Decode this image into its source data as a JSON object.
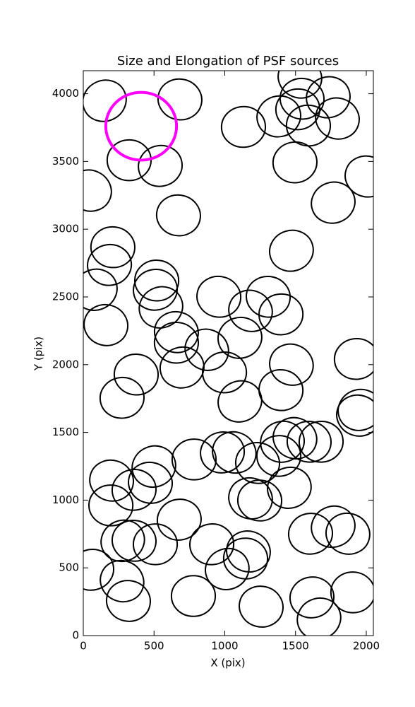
{
  "chart_data": {
    "type": "ellipse",
    "title": "Size and Elongation of PSF sources",
    "x_label": "X (pix)",
    "y_label": "Y (pix)",
    "xlim": [
      0,
      2050
    ],
    "ylim": [
      0,
      4170
    ],
    "xticks": [
      0,
      500,
      1000,
      1500,
      2000
    ],
    "yticks": [
      0,
      500,
      1000,
      1500,
      2000,
      2500,
      3000,
      3500,
      4000
    ],
    "series": [
      {
        "color": "#000000",
        "ellipse_width": 310,
        "ellipse_height": 300,
        "x": [
          150,
          683,
          324,
          544,
          45,
          673,
          1132,
          1382,
          1531,
          1546,
          1516,
          1731,
          1796,
          1591,
          1496,
          1766,
          2005,
          209,
          185,
          85,
          160,
          519,
          509,
          549,
          658,
          658,
          698,
          873,
          958,
          998,
          1107,
          1182,
          1307,
          1397,
          1471,
          1471,
          1397,
          1930,
          1955,
          1945,
          374,
          274,
          1107,
          200,
          195,
          359,
          499,
          474,
          783,
          678,
          279,
          359,
          509,
          983,
          1067,
          1232,
          1382,
          1407,
          1496,
          1596,
          1681,
          1456,
          1182,
          1247,
          908,
          1017,
          1167,
          1147,
          1606,
          1766,
          1870,
          1905,
          1616,
          1666,
          1257,
          778,
          60,
          274,
          319
        ],
        "y": [
          3948,
          3958,
          3509,
          3467,
          3285,
          3102,
          3755,
          3833,
          4120,
          3963,
          3885,
          3974,
          3817,
          3765,
          3493,
          3196,
          3389,
          2867,
          2736,
          2553,
          2292,
          2621,
          2553,
          2423,
          2240,
          2162,
          1979,
          2110,
          2501,
          1943,
          2198,
          2397,
          2501,
          2371,
          2841,
          2000,
          1812,
          2042,
          1666,
          1624,
          1927,
          1755,
          1729,
          1144,
          961,
          1076,
          1248,
          1128,
          1300,
          856,
          700,
          700,
          674,
          1352,
          1352,
          1274,
          1326,
          1431,
          1457,
          1431,
          1431,
          1091,
          1013,
          997,
          674,
          491,
          621,
          569,
          752,
          804,
          752,
          319,
          282,
          125,
          214,
          292,
          486,
          402,
          256
        ]
      },
      {
        "color": "#ff00ff",
        "ellipse_width": 500,
        "ellipse_height": 500,
        "x": [
          409
        ],
        "y": [
          3760
        ]
      }
    ]
  }
}
